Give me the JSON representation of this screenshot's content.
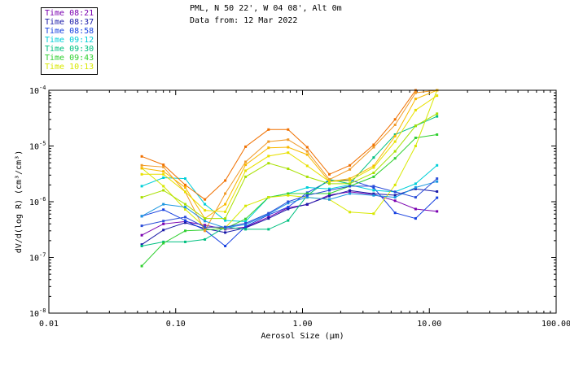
{
  "header": {
    "title": "PML, N 50 22', W 04 08', Alt 0m",
    "subtitle": "Data from: 12 Mar 2022"
  },
  "chart_data": {
    "type": "line",
    "xscale": "log",
    "yscale": "log",
    "xlim": [
      0.01,
      100
    ],
    "ylim": [
      1e-08,
      0.0001
    ],
    "xlabel": "Aerosol Size (μm)",
    "ylabel": "dV/d(log R) (cm³/cm³)",
    "xticks": [
      {
        "v": 0.01,
        "label": "0.01"
      },
      {
        "v": 0.1,
        "label": "0.10"
      },
      {
        "v": 1,
        "label": "1.00"
      },
      {
        "v": 10,
        "label": "10.00"
      },
      {
        "v": 100,
        "label": "100.00"
      }
    ],
    "yticks": [
      {
        "v": 1e-08,
        "base": "10",
        "exp": "-8"
      },
      {
        "v": 1e-07,
        "base": "10",
        "exp": "-7"
      },
      {
        "v": 1e-06,
        "base": "10",
        "exp": "-6"
      },
      {
        "v": 1e-05,
        "base": "10",
        "exp": "-5"
      },
      {
        "v": 0.0001,
        "base": "10",
        "exp": "-4"
      }
    ],
    "x": [
      0.054,
      0.08,
      0.119,
      0.17,
      0.246,
      0.356,
      0.54,
      0.77,
      1.09,
      1.63,
      2.36,
      3.64,
      5.37,
      7.8,
      11.5
    ],
    "series": [
      {
        "name": "Time 08:21",
        "color": "#7a00b0",
        "values": [
          2.5e-07,
          4e-07,
          4.4e-07,
          3.8e-07,
          3.2e-07,
          3.5e-07,
          5.3e-07,
          7.8e-07,
          8.9e-07,
          1.32e-06,
          1.5e-06,
          1.35e-06,
          1.04e-06,
          7.4e-07,
          6.7e-07
        ]
      },
      {
        "name": "Time 08:37",
        "color": "#1a1aa8",
        "values": [
          1.7e-07,
          3.1e-07,
          4.2e-07,
          3.3e-07,
          2.8e-07,
          3.4e-07,
          5e-07,
          7.4e-07,
          9e-07,
          1.26e-06,
          1.59e-06,
          1.39e-06,
          1.31e-06,
          1.7e-06,
          1.52e-06
        ]
      },
      {
        "name": "Time 08:58",
        "color": "#1640e0",
        "values": [
          5.5e-07,
          7.2e-07,
          4.6e-07,
          3.1e-07,
          1.6e-07,
          3.6e-07,
          5.8e-07,
          8e-07,
          1.45e-06,
          2.37e-06,
          2.46e-06,
          1.79e-06,
          6.3e-07,
          5e-07,
          1.18e-06
        ]
      },
      {
        "name": "Time 09:12",
        "color": "#00cfd8",
        "values": [
          1.9e-06,
          2.7e-06,
          2.6e-06,
          9e-07,
          4.6e-07,
          4.4e-07,
          1.2e-06,
          1.4e-06,
          1.8e-06,
          1.7e-06,
          2e-06,
          1.6e-06,
          1.5e-06,
          2.1e-06,
          4.5e-06
        ]
      },
      {
        "name": "Time 09:30",
        "color": "#00c080",
        "values": [
          1.6e-07,
          1.9e-07,
          1.9e-07,
          2.1e-07,
          3.5e-07,
          3.2e-07,
          3.2e-07,
          4.6e-07,
          1.3e-06,
          2.5e-06,
          2.1e-06,
          6.2e-06,
          1.6e-05,
          2.3e-05,
          3.4e-05
        ]
      },
      {
        "name": "Time 09:43",
        "color": "#30d030",
        "values": [
          7e-08,
          1.8e-07,
          3e-07,
          3.1e-07,
          3.3e-07,
          4.9e-07,
          1.2e-06,
          1.4e-06,
          1.4e-06,
          1.4e-06,
          1.9e-06,
          2.8e-06,
          6e-06,
          1.4e-05,
          1.6e-05
        ]
      },
      {
        "name": "Time 10:13",
        "color": "#d8e800",
        "values": [
          4e-06,
          1.9e-06,
          7.3e-07,
          3.5e-07,
          3.4e-07,
          8.4e-07,
          1.2e-06,
          1.3e-06,
          1.2e-06,
          1.1e-06,
          6.5e-07,
          6.1e-07,
          2e-06,
          1e-05,
          0.0001
        ]
      },
      {
        "name": "",
        "color": "#f07000",
        "values": [
          6.5e-06,
          4.6e-06,
          2e-06,
          1.1e-06,
          2.4e-06,
          9.7e-06,
          1.97e-05,
          1.97e-05,
          9.5e-06,
          3.1e-06,
          4.5e-06,
          1.05e-05,
          3e-05,
          0.0001,
          0.0001
        ]
      },
      {
        "name": "",
        "color": "#f09a28",
        "values": [
          4.5e-06,
          4.2e-06,
          1.5e-06,
          3e-07,
          1.4e-06,
          5.2e-06,
          1.2e-05,
          1.3e-05,
          8e-06,
          2.5e-06,
          3.8e-06,
          9.5e-06,
          2.4e-05,
          9e-05,
          0.0001
        ]
      },
      {
        "name": "",
        "color": "#f8b800",
        "values": [
          4e-06,
          3.5e-06,
          1.8e-06,
          5e-07,
          9e-07,
          4.6e-06,
          9.3e-06,
          9.5e-06,
          7e-06,
          2.3e-06,
          2.6e-06,
          4.4e-06,
          1.5e-05,
          7e-05,
          0.0001
        ]
      },
      {
        "name": "",
        "color": "#e8e000",
        "values": [
          3.1e-06,
          3.1e-06,
          1.5e-06,
          7e-07,
          6.6e-07,
          3.6e-06,
          6.6e-06,
          7.6e-06,
          4.4e-06,
          2.3e-06,
          2.4e-06,
          4.1e-06,
          1.2e-05,
          4.4e-05,
          8e-05
        ]
      },
      {
        "name": "",
        "color": "#a8e000",
        "values": [
          1.2e-06,
          1.6e-06,
          9e-07,
          5e-07,
          5e-07,
          2.8e-06,
          4.9e-06,
          3.9e-06,
          2.8e-06,
          2.1e-06,
          2.1e-06,
          3.3e-06,
          8e-06,
          2.3e-05,
          3.8e-05
        ]
      },
      {
        "name": "",
        "color": "#1a96e0",
        "values": [
          5.5e-07,
          9e-07,
          8e-07,
          4.5e-07,
          3.4e-07,
          3.9e-07,
          6e-07,
          9.4e-07,
          1.2e-06,
          1.1e-06,
          1.4e-06,
          1.3e-06,
          1.2e-06,
          1.8e-06,
          2.3e-06
        ]
      },
      {
        "name": "",
        "color": "#2a4cd8",
        "values": [
          3.7e-07,
          4.5e-07,
          5.3e-07,
          3.5e-07,
          3.5e-07,
          4.1e-07,
          6.2e-07,
          1e-06,
          1.3e-06,
          1.6e-06,
          1.9e-06,
          1.9e-06,
          1.5e-06,
          1.2e-06,
          2.6e-06
        ]
      }
    ]
  }
}
